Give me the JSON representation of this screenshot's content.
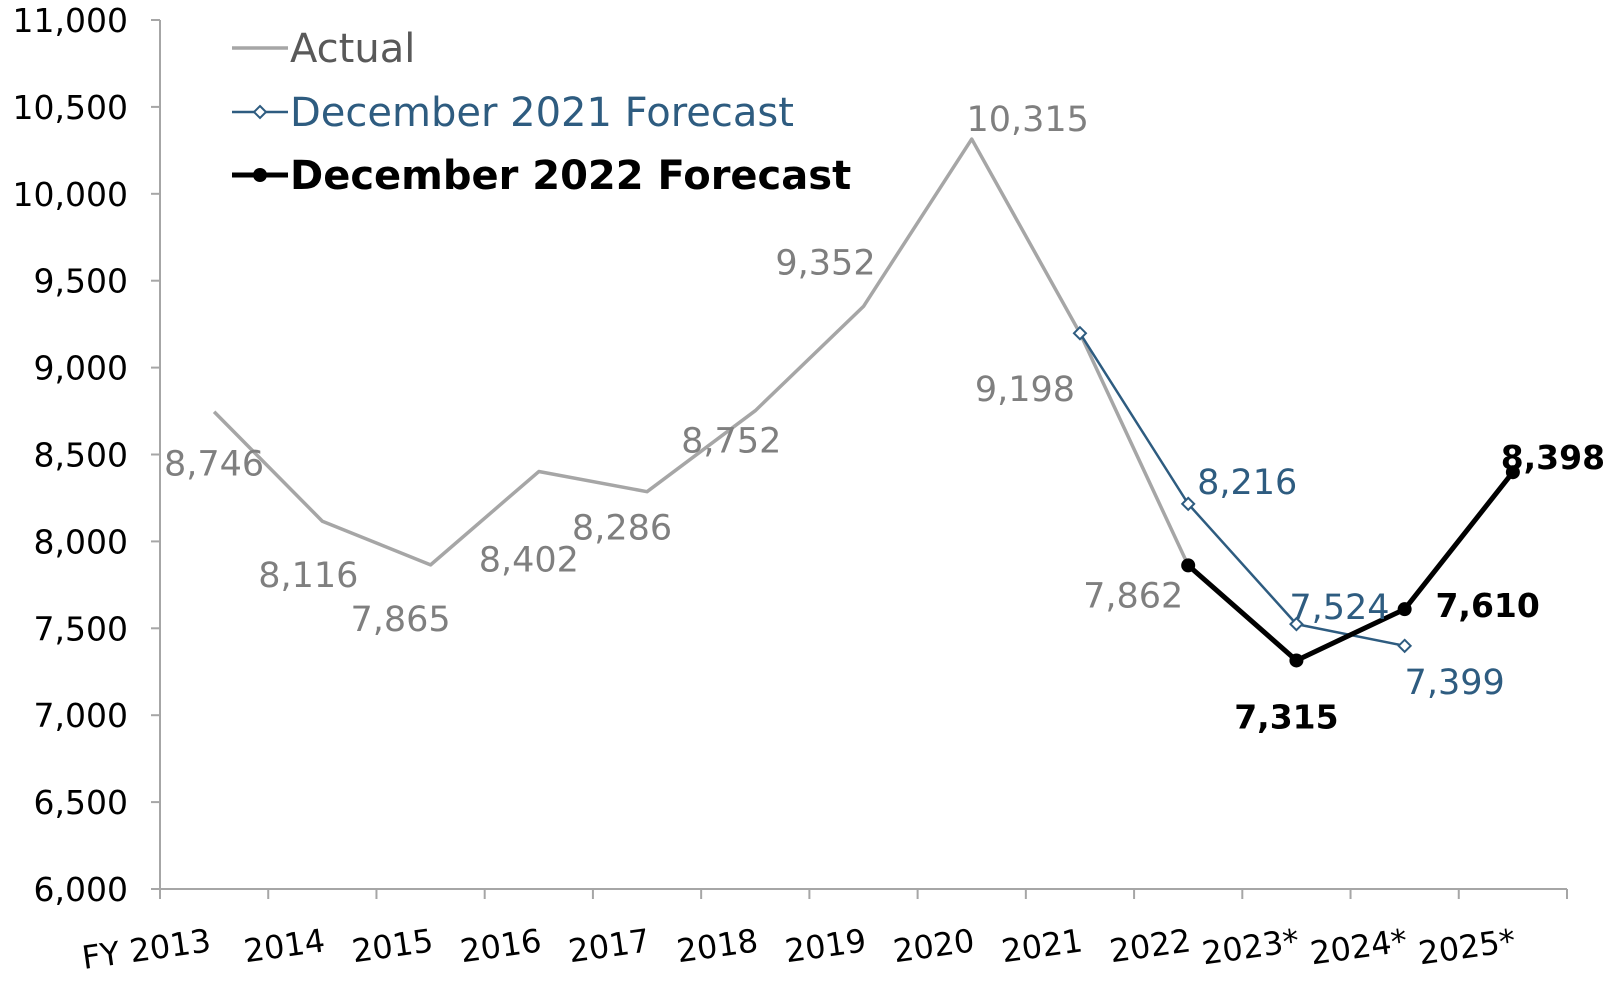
{
  "chart_data": {
    "type": "line",
    "categories": [
      "FY 2013",
      "2014",
      "2015",
      "2016",
      "2017",
      "2018",
      "2019",
      "2020",
      "2021",
      "2022",
      "2023*",
      "2024*",
      "2025*"
    ],
    "ylim": [
      6000,
      11000
    ],
    "yticks": [
      "6,000",
      "6,500",
      "7,000",
      "7,500",
      "8,000",
      "8,500",
      "9,000",
      "9,500",
      "10,000",
      "10,500",
      "11,000"
    ],
    "grid": false,
    "legend_position": "top-left",
    "series": [
      {
        "name": "Actual",
        "color": "#a6a6a6",
        "marker": "none",
        "values": [
          8746,
          8116,
          7865,
          8402,
          8286,
          8752,
          9352,
          10315,
          9198,
          7862,
          null,
          null,
          null
        ],
        "labels": [
          "8,746",
          "8,116",
          "7,865",
          "8,402",
          "8,286",
          "8,752",
          "9,352",
          "10,315",
          "9,198",
          "7,862",
          null,
          null,
          null
        ]
      },
      {
        "name": "December 2021 Forecast",
        "color": "#2e5c80",
        "marker": "open-diamond",
        "values": [
          null,
          null,
          null,
          null,
          null,
          null,
          null,
          null,
          9198,
          8216,
          7524,
          7399,
          null
        ],
        "labels": [
          null,
          null,
          null,
          null,
          null,
          null,
          null,
          null,
          null,
          "8,216",
          "7,524",
          "7,399",
          null
        ]
      },
      {
        "name": "December 2022 Forecast",
        "color": "#000000",
        "marker": "filled-circle",
        "values": [
          null,
          null,
          null,
          null,
          null,
          null,
          null,
          null,
          null,
          7862,
          7315,
          7610,
          8398
        ],
        "labels": [
          null,
          null,
          null,
          null,
          null,
          null,
          null,
          null,
          null,
          null,
          "7,315",
          "7,610",
          "8,398"
        ]
      }
    ]
  }
}
